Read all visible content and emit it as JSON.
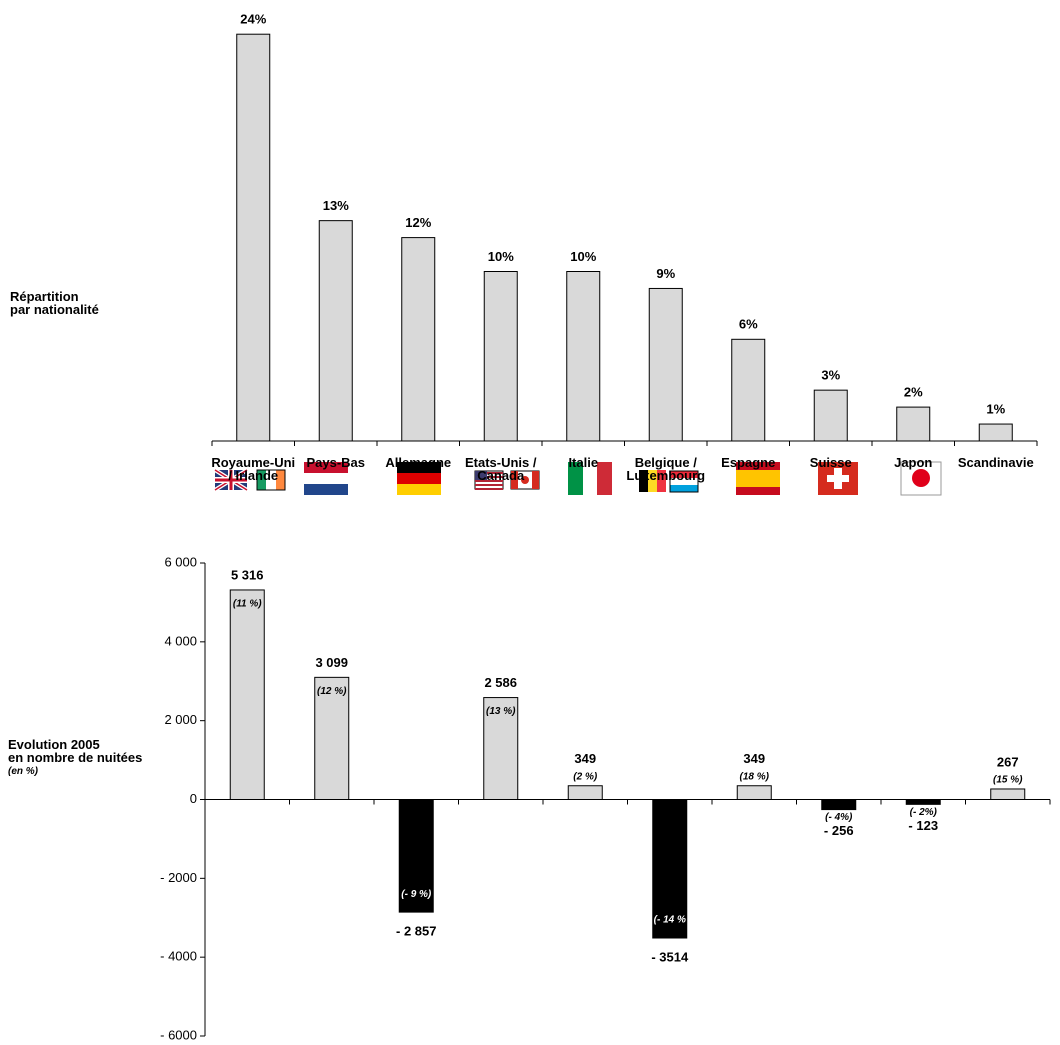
{
  "chart_data": [
    {
      "type": "bar",
      "title": "Répartition\npar nationalité",
      "categories": [
        "Royaume-Uni\n/ Irlande",
        "Pays-Bas",
        "Allemagne",
        "Etats-Unis /\nCanada",
        "Italie",
        "Belgique /\nLuxembourg",
        "Espagne",
        "Suisse",
        "Japon",
        "Scandinavie"
      ],
      "values": [
        24,
        13,
        12,
        10,
        10,
        9,
        6,
        3,
        2,
        1
      ],
      "value_labels": [
        "24%",
        "13%",
        "12%",
        "10%",
        "10%",
        "9%",
        "6%",
        "3%",
        "2%",
        "1%"
      ],
      "color": "#d9d9d9"
    },
    {
      "type": "bar",
      "title": "Evolution 2005\nen nombre de nuitées",
      "subtitle": "(en %)",
      "values": [
        5316,
        3099,
        -2857,
        2586,
        349,
        -3514,
        349,
        -256,
        -123,
        267
      ],
      "value_labels": [
        "5 316",
        "3 099",
        "- 2 857",
        "2 586",
        "349",
        "- 3514",
        "349",
        "- 256",
        "- 123",
        "267"
      ],
      "growth_pct": [
        11,
        12,
        -9,
        13,
        2,
        -14,
        18,
        -4,
        -2,
        15
      ],
      "growth_pct_labels": [
        "(11 %)",
        "(12 %)",
        "(- 9 %)",
        "(13 %)",
        "(2 %)",
        "(- 14 %",
        "(18 %)",
        "(- 4%)",
        "(- 2%)",
        "(15 %)"
      ],
      "positive_color": "#d9d9d9",
      "negative_color": "#000000",
      "ylim": [
        -6000,
        6000
      ],
      "yticks": [
        {
          "value": 6000,
          "label": "6 000"
        },
        {
          "value": 4000,
          "label": "4 000"
        },
        {
          "value": 2000,
          "label": "2 000"
        },
        0,
        {
          "value": -2000,
          "label": "- 2000"
        },
        {
          "value": -4000,
          "label": "- 4000"
        },
        {
          "value": -6000,
          "label": "- 6000"
        }
      ]
    }
  ]
}
